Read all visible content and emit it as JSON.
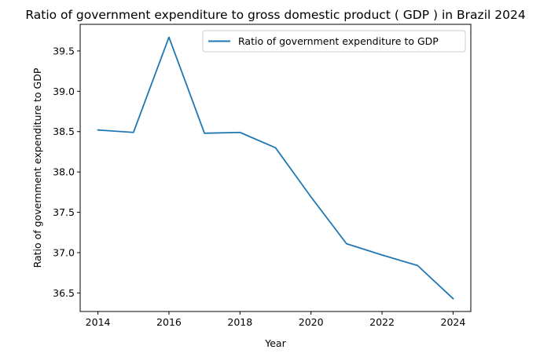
{
  "chart_data": {
    "type": "line",
    "title": "Ratio of government expenditure to gross domestic product ( GDP ) in Brazil 2024",
    "xlabel": "Year",
    "ylabel": "Ratio of government expenditure to GDP",
    "x": [
      2014,
      2015,
      2016,
      2017,
      2018,
      2019,
      2020,
      2021,
      2022,
      2023,
      2024
    ],
    "series": [
      {
        "name": "Ratio of government expenditure to GDP",
        "color": "#1f77b4",
        "values": [
          38.52,
          38.49,
          39.67,
          38.48,
          38.49,
          38.3,
          37.69,
          37.11,
          36.97,
          36.84,
          36.43
        ]
      }
    ],
    "xlim": [
      2013.5,
      2024.5
    ],
    "ylim": [
      36.27,
      39.83
    ],
    "xticks": [
      2014,
      2016,
      2018,
      2020,
      2022,
      2024
    ],
    "yticks": [
      36.5,
      37.0,
      37.5,
      38.0,
      38.5,
      39.0,
      39.5
    ],
    "ytick_labels": [
      "36.5",
      "37.0",
      "37.5",
      "38.0",
      "38.5",
      "39.0",
      "39.5"
    ],
    "grid": false,
    "legend_position": "top-right"
  }
}
